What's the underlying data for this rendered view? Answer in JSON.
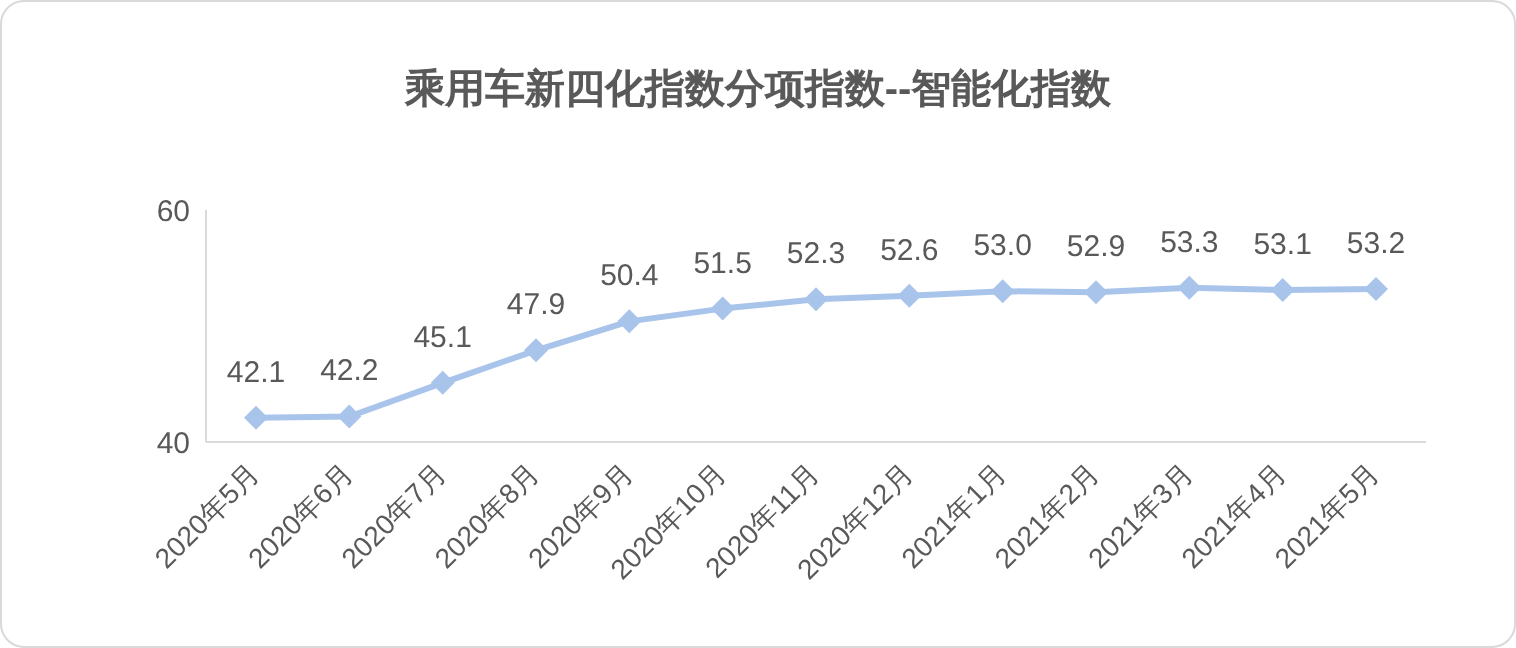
{
  "chart_data": {
    "type": "line",
    "title": "乘用车新四化指数分项指数--智能化指数",
    "categories": [
      "2020年5月",
      "2020年6月",
      "2020年7月",
      "2020年8月",
      "2020年9月",
      "2020年10月",
      "2020年11月",
      "2020年12月",
      "2021年1月",
      "2021年2月",
      "2021年3月",
      "2021年4月",
      "2021年5月"
    ],
    "series": [
      {
        "color": "#a9c4eb",
        "values": [
          42.1,
          42.2,
          45.1,
          47.9,
          50.4,
          51.5,
          52.3,
          52.6,
          53.0,
          52.9,
          53.3,
          53.1,
          53.2
        ],
        "value_labels": [
          "42.1",
          "42.2",
          "45.1",
          "47.9",
          "50.4",
          "51.5",
          "52.3",
          "52.6",
          "53.0",
          "52.9",
          "53.3",
          "53.1",
          "53.2"
        ]
      }
    ],
    "ylim": [
      40,
      60
    ],
    "yticks": [
      40,
      60
    ],
    "marker": "diamond",
    "line_style": "solid"
  }
}
